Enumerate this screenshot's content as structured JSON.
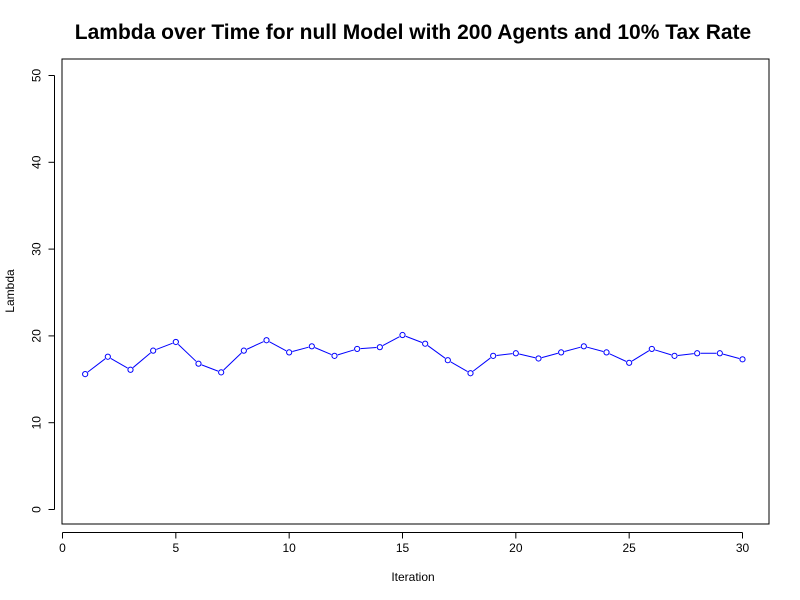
{
  "chart_data": {
    "type": "line",
    "title": "Lambda over Time for null Model with 200 Agents and 10% Tax Rate",
    "xlabel": "Iteration",
    "ylabel": "Lambda",
    "xlim": [
      0,
      30
    ],
    "ylim": [
      0,
      50
    ],
    "x_ticks": [
      0,
      5,
      10,
      15,
      20,
      25,
      30
    ],
    "y_ticks": [
      0,
      10,
      20,
      30,
      40,
      50
    ],
    "grid": false,
    "line_color": "#0000ff",
    "marker": "open-circle",
    "series": [
      {
        "x": [
          1,
          2,
          3,
          4,
          5,
          6,
          7,
          8,
          9,
          10,
          11,
          12,
          13,
          14,
          15,
          16,
          17,
          18,
          19,
          20,
          21,
          22,
          23,
          24,
          25,
          26,
          27,
          28,
          29,
          30
        ],
        "values": [
          15.6,
          17.6,
          16.1,
          18.3,
          19.3,
          16.8,
          15.8,
          18.3,
          19.5,
          18.1,
          18.8,
          17.7,
          18.5,
          18.7,
          20.1,
          19.1,
          17.2,
          15.7,
          17.7,
          18.0,
          17.4,
          18.1,
          18.8,
          18.1,
          16.9,
          18.5,
          17.7,
          18.0,
          18.0,
          17.3
        ]
      }
    ]
  }
}
